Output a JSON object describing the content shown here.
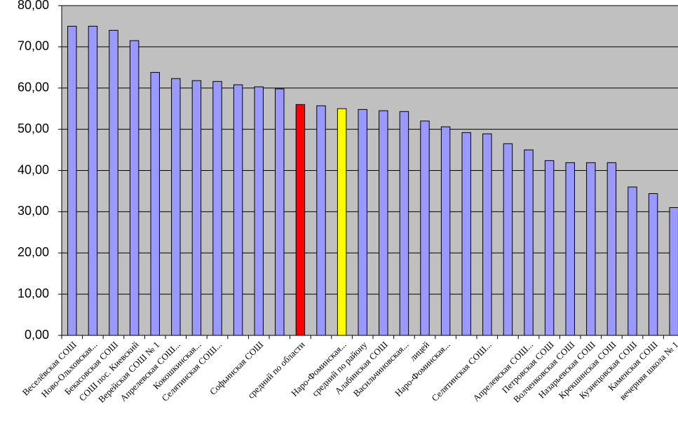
{
  "chart_data": {
    "type": "bar",
    "categories": [
      "Веселёвская СОШ",
      "Ново-Ольховская...",
      "Бекасовская СОШ",
      "СОШ  пос. Киевский",
      "Верейская СОШ № 1",
      "Апрелевская СОШ...",
      "Кокошкинская...",
      "Селятинская СОШ...",
      null,
      "Софьинская СОШ",
      null,
      "средний по области",
      null,
      "Наро-Фоминская...",
      "средний по району",
      "Алабинская СОШ",
      "Васильчиновская...",
      "лицей",
      "Наро-Фоминская...",
      null,
      "Селятинская СОШ...",
      null,
      "Апрелевская СОШ...",
      "Петровская СОШ",
      "Волченковская СОШ",
      "Назарьевская СОШ",
      "Крекшинская СОШ",
      "Кузнецовская СОШ",
      "Каменская СОШ",
      "вечерняя  школа № 1"
    ],
    "values": [
      75,
      75,
      74,
      71.5,
      63.8,
      62.3,
      61.8,
      61.6,
      60.8,
      60.3,
      59.8,
      56,
      55.7,
      55,
      54.8,
      54.5,
      54.3,
      52,
      50.6,
      49.2,
      48.9,
      46.5,
      45,
      42.4,
      41.9,
      41.9,
      41.9,
      36,
      34.4,
      31
    ],
    "colors": [
      "#9999ff",
      "#9999ff",
      "#9999ff",
      "#9999ff",
      "#9999ff",
      "#9999ff",
      "#9999ff",
      "#9999ff",
      "#9999ff",
      "#9999ff",
      "#9999ff",
      "#ff0000",
      "#9999ff",
      "#ffff00",
      "#9999ff",
      "#9999ff",
      "#9999ff",
      "#9999ff",
      "#9999ff",
      "#9999ff",
      "#9999ff",
      "#9999ff",
      "#9999ff",
      "#9999ff",
      "#9999ff",
      "#9999ff",
      "#9999ff",
      "#9999ff",
      "#9999ff",
      "#9999ff"
    ],
    "ylim": [
      0,
      80
    ],
    "yticks": [
      {
        "value": 0,
        "label": "0,00"
      },
      {
        "value": 10,
        "label": "10,00"
      },
      {
        "value": 20,
        "label": "20,00"
      },
      {
        "value": 30,
        "label": "30,00"
      },
      {
        "value": 40,
        "label": "40,00"
      },
      {
        "value": 50,
        "label": "50,00"
      },
      {
        "value": 60,
        "label": "60,00"
      },
      {
        "value": 70,
        "label": "70,00"
      },
      {
        "value": 80,
        "label": "80,00"
      }
    ],
    "grid": true,
    "background": "#c0c0c0"
  }
}
